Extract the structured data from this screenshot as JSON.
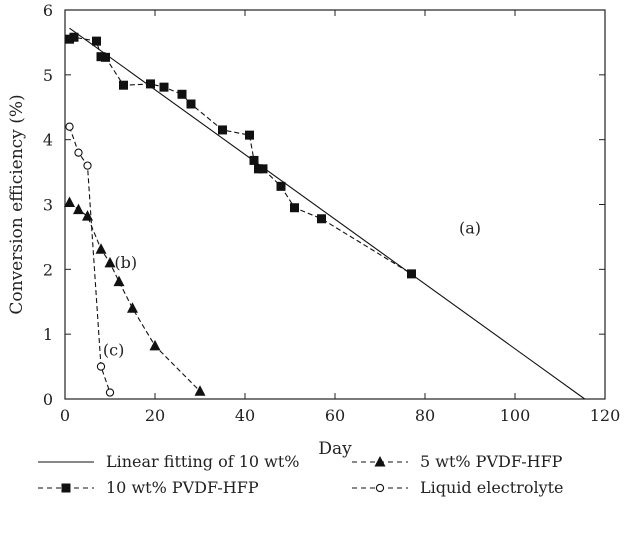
{
  "chart_data": {
    "type": "line",
    "title": "",
    "xlabel": "Day",
    "ylabel": "Conversion efficiency (%)",
    "xlim": [
      0,
      120
    ],
    "ylim": [
      0,
      6
    ],
    "xticks": [
      0,
      20,
      40,
      60,
      80,
      100,
      120
    ],
    "yticks": [
      0,
      1,
      2,
      3,
      4,
      5,
      6
    ],
    "grid": false,
    "legend_position": "bottom",
    "series": [
      {
        "name": "Linear fitting of 10 wt%",
        "style": "solid",
        "marker": "none",
        "x": [
          1,
          115.5
        ],
        "y": [
          5.72,
          0
        ]
      },
      {
        "name": "10 wt% PVDF-HFP",
        "style": "dashed",
        "marker": "square",
        "x": [
          1,
          2,
          7,
          8,
          9,
          13,
          19,
          22,
          26,
          28,
          35,
          41,
          42,
          43,
          44,
          48,
          51,
          57,
          77
        ],
        "y": [
          5.55,
          5.58,
          5.52,
          5.28,
          5.27,
          4.84,
          4.86,
          4.81,
          4.7,
          4.55,
          4.15,
          4.07,
          3.68,
          3.55,
          3.55,
          3.28,
          2.95,
          2.78,
          1.93
        ]
      },
      {
        "name": "5 wt% PVDF-HFP",
        "style": "dashed",
        "marker": "triangle",
        "x": [
          1,
          3,
          5,
          8,
          10,
          12,
          15,
          20,
          30
        ],
        "y": [
          3.03,
          2.92,
          2.82,
          2.31,
          2.1,
          1.81,
          1.4,
          0.82,
          0.12
        ]
      },
      {
        "name": "Liquid electrolyte",
        "style": "dashed",
        "marker": "circle-open",
        "x": [
          1,
          3,
          5,
          8,
          10
        ],
        "y": [
          4.2,
          3.8,
          3.6,
          0.5,
          0.1
        ]
      }
    ],
    "annotations": [
      {
        "text": "(a)",
        "x": 90,
        "y": 2.55
      },
      {
        "text": "(b)",
        "x": 13.5,
        "y": 2.02
      },
      {
        "text": "(c)",
        "x": 10.8,
        "y": 0.67
      }
    ]
  }
}
